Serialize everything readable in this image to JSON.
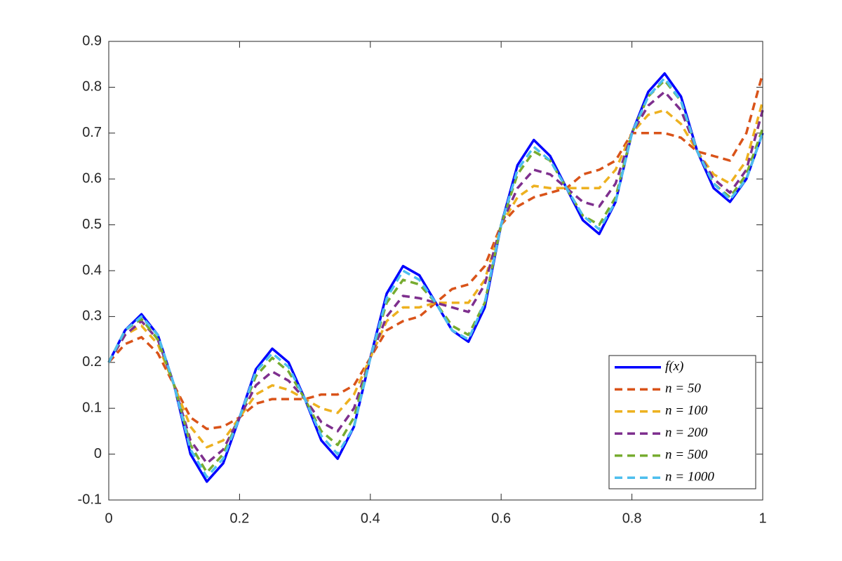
{
  "chart_data": {
    "type": "line",
    "x": [
      0,
      0.025,
      0.05,
      0.075,
      0.1,
      0.125,
      0.15,
      0.175,
      0.2,
      0.225,
      0.25,
      0.275,
      0.3,
      0.325,
      0.35,
      0.375,
      0.4,
      0.425,
      0.45,
      0.475,
      0.5,
      0.525,
      0.55,
      0.575,
      0.6,
      0.625,
      0.65,
      0.675,
      0.7,
      0.725,
      0.75,
      0.775,
      0.8,
      0.825,
      0.85,
      0.875,
      0.9,
      0.925,
      0.95,
      0.975,
      1
    ],
    "series": [
      {
        "name": "f(x)",
        "color": "#0000ff",
        "dashed": false,
        "values": [
          0.2,
          0.27,
          0.305,
          0.26,
          0.15,
          0.0,
          -0.06,
          -0.02,
          0.08,
          0.185,
          0.23,
          0.2,
          0.12,
          0.03,
          -0.01,
          0.06,
          0.21,
          0.35,
          0.41,
          0.39,
          0.33,
          0.27,
          0.245,
          0.32,
          0.5,
          0.63,
          0.685,
          0.65,
          0.58,
          0.51,
          0.48,
          0.55,
          0.7,
          0.79,
          0.83,
          0.78,
          0.66,
          0.58,
          0.55,
          0.6,
          0.7
        ]
      },
      {
        "name": "n = 50",
        "color": "#d95319",
        "dashed": true,
        "values": [
          0.2,
          0.24,
          0.255,
          0.22,
          0.15,
          0.08,
          0.055,
          0.06,
          0.08,
          0.11,
          0.12,
          0.12,
          0.12,
          0.13,
          0.13,
          0.15,
          0.21,
          0.27,
          0.29,
          0.3,
          0.33,
          0.36,
          0.37,
          0.41,
          0.5,
          0.54,
          0.56,
          0.57,
          0.58,
          0.61,
          0.62,
          0.64,
          0.7,
          0.7,
          0.7,
          0.69,
          0.66,
          0.65,
          0.64,
          0.7,
          0.83
        ]
      },
      {
        "name": "n = 100",
        "color": "#edb120",
        "dashed": true,
        "values": [
          0.2,
          0.26,
          0.28,
          0.24,
          0.15,
          0.06,
          0.015,
          0.03,
          0.08,
          0.13,
          0.15,
          0.14,
          0.12,
          0.1,
          0.09,
          0.13,
          0.21,
          0.29,
          0.32,
          0.32,
          0.33,
          0.33,
          0.33,
          0.38,
          0.5,
          0.56,
          0.585,
          0.58,
          0.58,
          0.58,
          0.58,
          0.62,
          0.7,
          0.74,
          0.75,
          0.72,
          0.66,
          0.61,
          0.59,
          0.64,
          0.77
        ]
      },
      {
        "name": "n = 200",
        "color": "#7e2f8e",
        "dashed": true,
        "values": [
          0.2,
          0.26,
          0.29,
          0.25,
          0.15,
          0.03,
          -0.02,
          0.01,
          0.08,
          0.15,
          0.18,
          0.16,
          0.12,
          0.07,
          0.05,
          0.1,
          0.21,
          0.3,
          0.345,
          0.34,
          0.33,
          0.32,
          0.31,
          0.37,
          0.5,
          0.58,
          0.62,
          0.61,
          0.58,
          0.55,
          0.54,
          0.59,
          0.7,
          0.76,
          0.79,
          0.75,
          0.66,
          0.6,
          0.57,
          0.62,
          0.75
        ]
      },
      {
        "name": "n = 500",
        "color": "#77ac30",
        "dashed": true,
        "values": [
          0.2,
          0.27,
          0.295,
          0.25,
          0.15,
          0.02,
          -0.04,
          0.0,
          0.08,
          0.17,
          0.21,
          0.18,
          0.12,
          0.05,
          0.02,
          0.08,
          0.21,
          0.33,
          0.38,
          0.37,
          0.33,
          0.28,
          0.26,
          0.33,
          0.5,
          0.61,
          0.66,
          0.64,
          0.58,
          0.52,
          0.5,
          0.56,
          0.7,
          0.78,
          0.815,
          0.77,
          0.66,
          0.59,
          0.56,
          0.61,
          0.71
        ]
      },
      {
        "name": "n = 1000",
        "color": "#4dbeee",
        "dashed": true,
        "values": [
          0.2,
          0.27,
          0.3,
          0.26,
          0.15,
          0.01,
          -0.05,
          -0.01,
          0.08,
          0.18,
          0.22,
          0.19,
          0.12,
          0.04,
          0.0,
          0.06,
          0.21,
          0.34,
          0.4,
          0.38,
          0.33,
          0.27,
          0.25,
          0.33,
          0.5,
          0.62,
          0.67,
          0.64,
          0.58,
          0.52,
          0.49,
          0.55,
          0.7,
          0.78,
          0.82,
          0.77,
          0.66,
          0.59,
          0.555,
          0.6,
          0.7
        ]
      }
    ],
    "xlim": [
      0,
      1
    ],
    "xticks": [
      0,
      0.2,
      0.4,
      0.6,
      0.8,
      1
    ],
    "ylim": [
      -0.1,
      0.9
    ],
    "yticks": [
      -0.1,
      0,
      0.1,
      0.2,
      0.3,
      0.4,
      0.5,
      0.6,
      0.7,
      0.8,
      0.9
    ],
    "legend": "southeast",
    "grid": false
  }
}
